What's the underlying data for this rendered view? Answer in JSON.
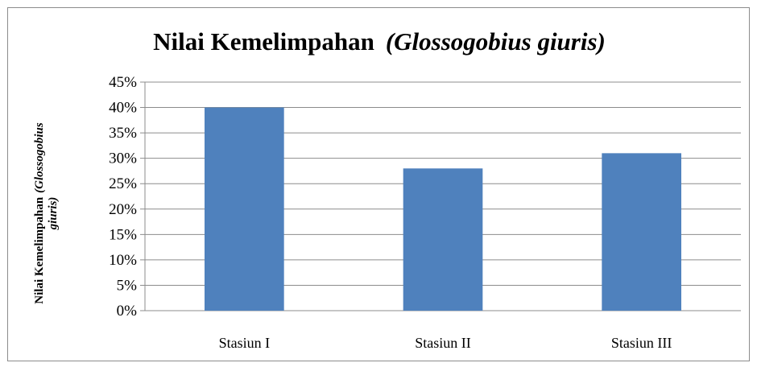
{
  "chart_data": {
    "type": "bar",
    "title": "Nilai Kemelimpahan",
    "title_italic": "(Glossogobius giuris)",
    "ylabel_line1": "Nilai Kemelimpahan",
    "ylabel_line1_italic": "(Glossogobius",
    "ylabel_line2": "giuris)",
    "categories": [
      "Stasiun I",
      "Stasiun II",
      "Stasiun III"
    ],
    "values": [
      40,
      28,
      31
    ],
    "value_unit": "%",
    "ylim": [
      0,
      45
    ],
    "yticks": [
      0,
      5,
      10,
      15,
      20,
      25,
      30,
      35,
      40,
      45
    ],
    "grid": true,
    "legend": false,
    "bar_color": "#4f81bd",
    "grid_color": "#8c8c8c"
  }
}
